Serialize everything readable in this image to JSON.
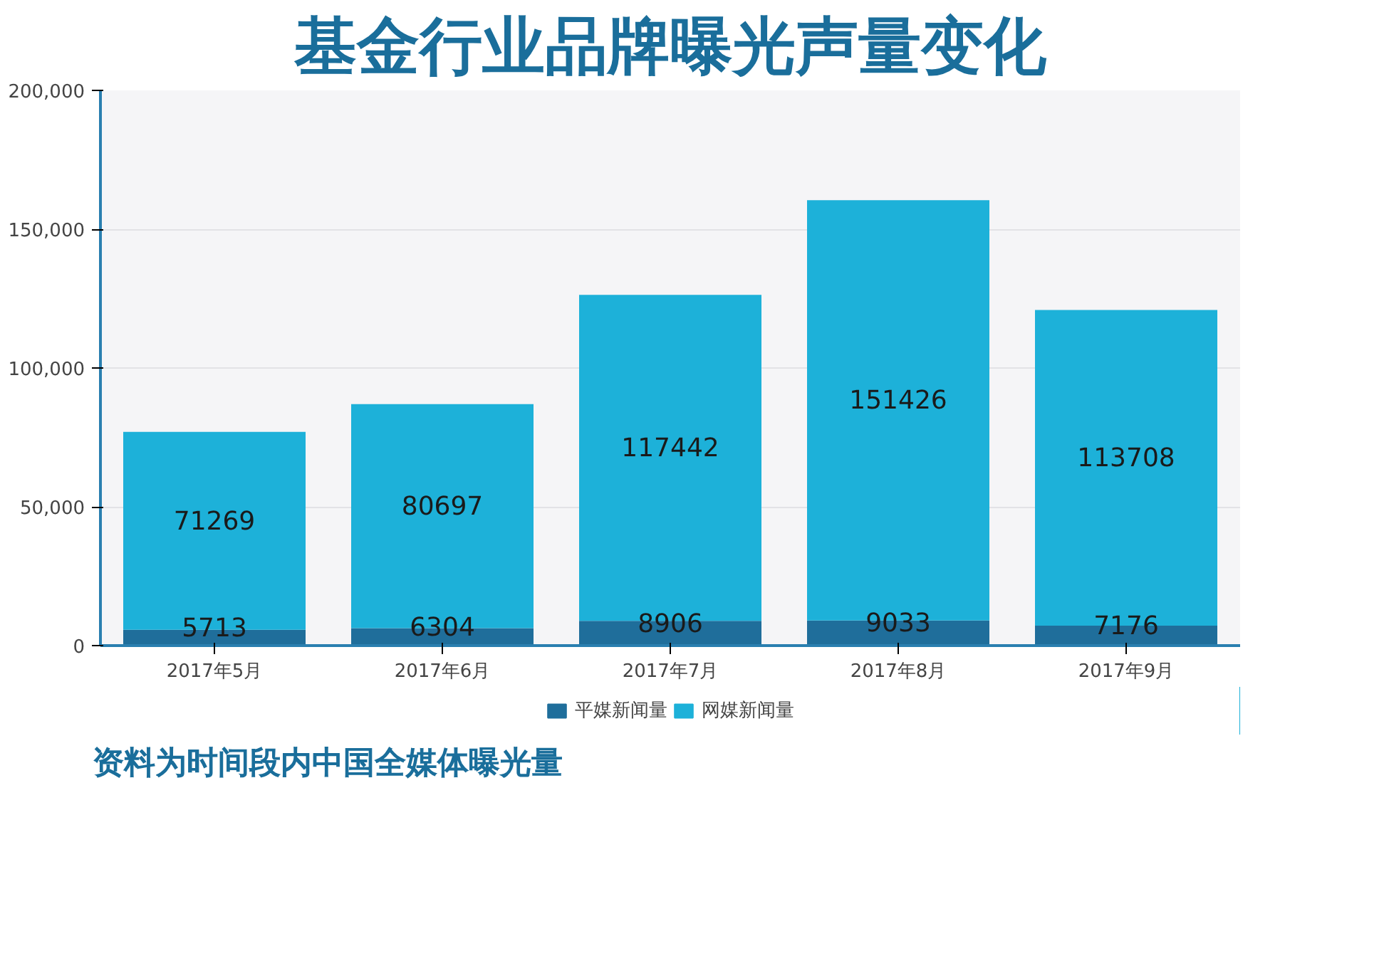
{
  "chart_data": {
    "type": "bar",
    "title": "基金行业品牌曝光声量变化",
    "stacked": true,
    "data_labels": true,
    "grid": "y",
    "legend": "bottom",
    "categories": [
      "2017年5月",
      "2017年6月",
      "2017年7月",
      "2017年8月",
      "2017年9月"
    ],
    "series": [
      {
        "name": "平媒新闻量",
        "color": "#1f6e9b",
        "values": [
          5713,
          6304,
          8906,
          9033,
          7176
        ]
      },
      {
        "name": "网媒新闻量",
        "color": "#1db1d9",
        "values": [
          71269,
          80697,
          117442,
          151426,
          113708
        ]
      }
    ],
    "ylim": [
      0,
      200000
    ],
    "yticks": [
      {
        "value": 0,
        "label": "0"
      },
      {
        "value": 50000,
        "label": "50,000"
      },
      {
        "value": 100000,
        "label": "100,000"
      },
      {
        "value": 150000,
        "label": "150,000"
      },
      {
        "value": 200000,
        "label": "200,000"
      }
    ],
    "annotations": [
      "资料为时间段内中国全媒体曝光量"
    ]
  }
}
